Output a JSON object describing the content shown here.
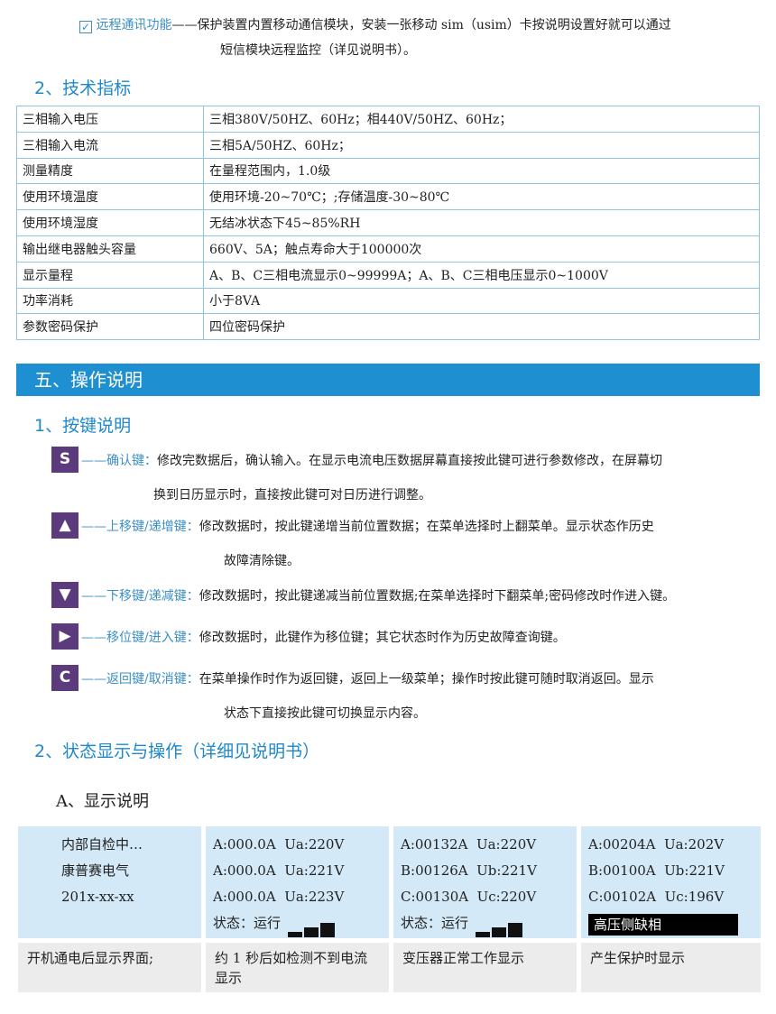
{
  "intro": {
    "feature_label": "远程通讯功能",
    "dash": "——",
    "line1": "保护装置内置移动通信模块，安装一张移动 sim（usim）卡按说明设置好就可以通过",
    "line2": "短信模块远程监控（详见说明书）。"
  },
  "tech": {
    "title": "2、技术指标",
    "rows": [
      [
        "三相输入电压",
        "三相380V/50HZ、60Hz；相440V/50HZ、60Hz；"
      ],
      [
        "三相输入电流",
        "三相5A/50HZ、60Hz；"
      ],
      [
        "测量精度",
        "在量程范围内，1.0级"
      ],
      [
        "使用环境温度",
        "使用环境-20~70℃；;存储温度-30~80℃"
      ],
      [
        "使用环境湿度",
        "无结冰状态下45~85%RH"
      ],
      [
        "输出继电器触头容量",
        "660V、5A；触点寿命大于100000次"
      ],
      [
        "显示量程",
        "A、B、C三相电流显示0~99999A；A、B、C三相电压显示0~1000V"
      ],
      [
        "功率消耗",
        "小于8VA"
      ],
      [
        "参数密码保护",
        "四位密码保护"
      ]
    ]
  },
  "section5": {
    "title": "五、操作说明"
  },
  "keys": {
    "title": "1、按键说明",
    "items": [
      {
        "glyph": "S",
        "label": "——确认键：",
        "desc": "修改完数据后，确认输入。在显示电流电压数据屏幕直接按此键可进行参数修改，在屏幕切",
        "desc2": "换到日历显示时，直接按此键可对日历进行调整。"
      },
      {
        "glyph": "▲",
        "label": "——上移键/递增键：",
        "desc": "修改数据时，按此键递增当前位置数据；在菜单选择时上翻菜单。显示状态作历史",
        "desc2": "故障清除键。"
      },
      {
        "glyph": "▼",
        "label": "——下移键/递减键：",
        "desc": "修改数据时，按此键递减当前位置数据;在菜单选择时下翻菜单;密码修改时作进入键。"
      },
      {
        "glyph": "▶",
        "label": "——移位键/进入键：",
        "desc": "修改数据时，此键作为移位键；其它状态时作为历史故障查询键。"
      },
      {
        "glyph": "C",
        "label": "——返回键/取消键：",
        "desc": "在菜单操作时作为返回键，返回上一级菜单；操作时按此键可随时取消返回。显示",
        "desc2": "状态下直接按此键可切换显示内容。"
      }
    ]
  },
  "status": {
    "title": "2、状态显示与操作（详细见说明书）",
    "subtitle": "A、显示说明",
    "screens": [
      {
        "lines": [
          "内部自检中…",
          "康普赛电气",
          "201x-xx-xx"
        ],
        "caption": "开机通电后显示界面;"
      },
      {
        "lines": [
          "A:000.0A  Ua:220V",
          "A:000.0A  Ua:221V",
          "A:000.0A  Ua:223V"
        ],
        "status": "状态：运行",
        "caption": "约 1 秒后如检测不到电流显示"
      },
      {
        "lines": [
          "A:00132A  Ua:220V",
          "B:00126A  Ub:221V",
          "C:00130A  Uc:220V"
        ],
        "status": "状态：运行",
        "caption": "变压器正常工作显示"
      },
      {
        "lines": [
          "A:00204A  Ua:202V",
          "B:00100A  Ub:221V",
          "C:00102A  Uc:196V"
        ],
        "alarm": "高压侧缺相",
        "caption": "产生保护时显示"
      }
    ]
  },
  "colors": {
    "accent": "#1e8fd0",
    "key_bg": "#5b3b7c",
    "screen_bg": "#d3e9f7",
    "caption_bg": "#ececec"
  }
}
